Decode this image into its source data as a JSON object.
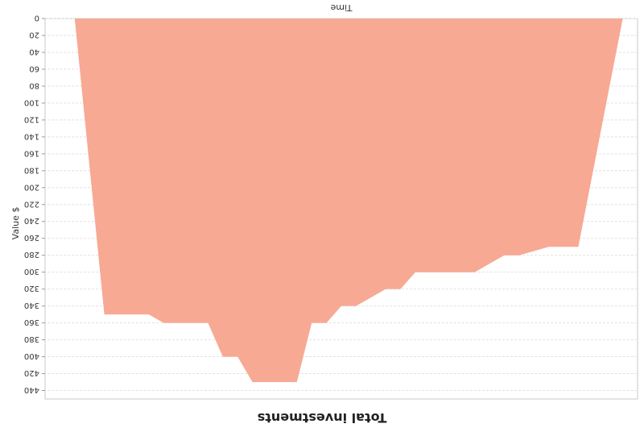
{
  "chart_data": {
    "type": "area",
    "title": "Total investments",
    "xlabel": "Time",
    "ylabel": "Value $",
    "orientation": "rotated 180 degrees",
    "fill_color": "#f7a994",
    "grid": true,
    "yticks": [
      0,
      20,
      40,
      60,
      80,
      100,
      120,
      140,
      160,
      180,
      200,
      220,
      240,
      260,
      280,
      300,
      320,
      340,
      360,
      380,
      400,
      420,
      440
    ],
    "ylim": [
      0,
      450
    ],
    "xlim": [
      0,
      40
    ],
    "series": [
      {
        "x": [
          1,
          4,
          6,
          8,
          9,
          11,
          12,
          15,
          16,
          17,
          19,
          20,
          21,
          22,
          23,
          26,
          27,
          28,
          29,
          31,
          32,
          33,
          34,
          36,
          38
        ],
        "values": [
          0,
          270,
          270,
          280,
          280,
          300,
          300,
          300,
          320,
          320,
          340,
          340,
          360,
          360,
          430,
          430,
          400,
          400,
          360,
          360,
          360,
          350,
          350,
          350,
          0
        ]
      }
    ]
  }
}
